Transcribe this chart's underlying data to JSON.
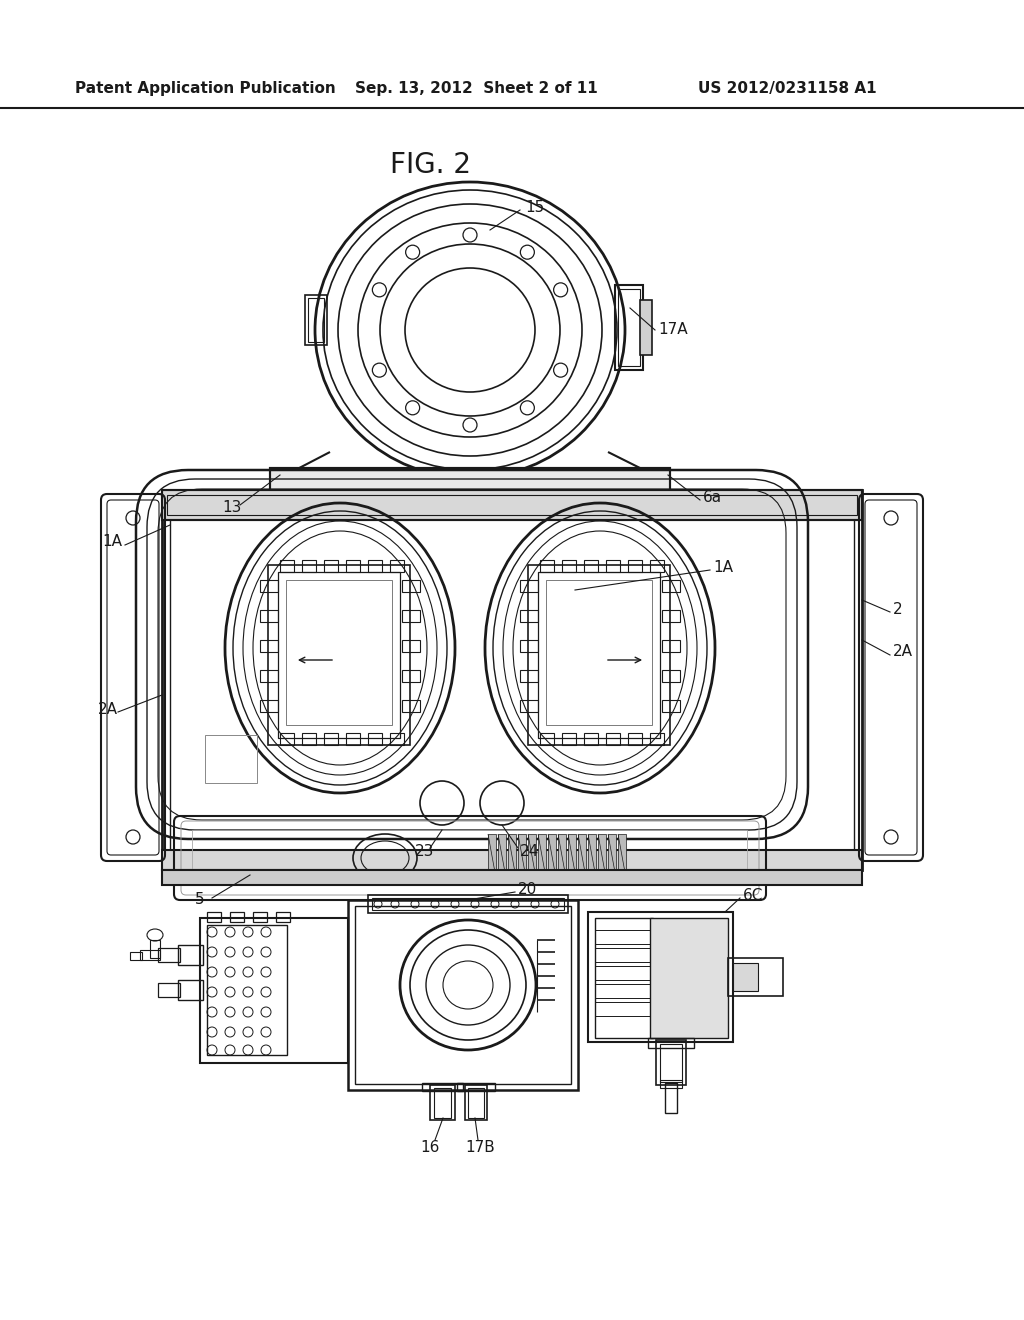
{
  "title": "FIG. 2",
  "header_left": "Patent Application Publication",
  "header_center": "Sep. 13, 2012  Sheet 2 of 11",
  "header_right": "US 2012/0231158 A1",
  "bg_color": "#ffffff",
  "lc": "#1a1a1a",
  "lw": 1.0
}
